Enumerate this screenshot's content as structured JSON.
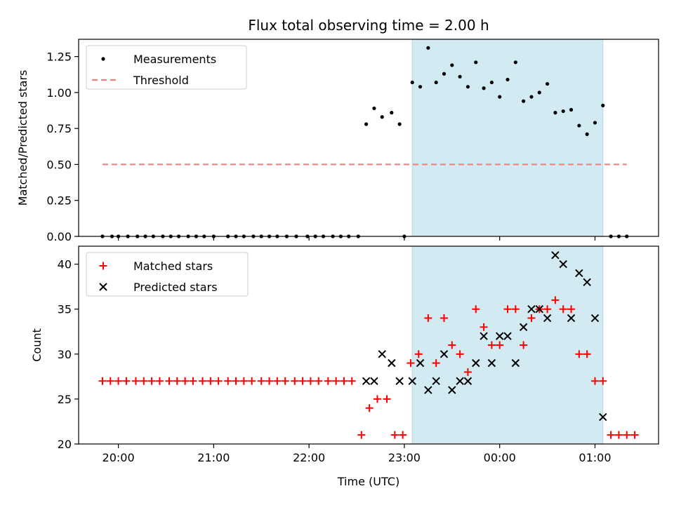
{
  "chart_data": {
    "type": "scatter",
    "title": "Flux total observing time = 2.00 h",
    "xlabel": "Time (UTC)",
    "x_ticks": [
      "20:00",
      "21:00",
      "22:00",
      "23:00",
      "00:00",
      "01:00"
    ],
    "x_range_minutes": [
      -25,
      340
    ],
    "shaded_interval": [
      "23:05",
      "01:05"
    ],
    "shade_color": "#add8e6",
    "panels": [
      {
        "ylabel": "Matched/Predicted stars",
        "ylim": [
          0,
          1.37
        ],
        "y_ticks": [
          "0.00",
          "0.25",
          "0.50",
          "0.75",
          "1.00",
          "1.25"
        ],
        "legend": {
          "placement": "upper left",
          "entries": [
            "Measurements",
            "Threshold"
          ]
        },
        "series": [
          {
            "name": "Measurements",
            "marker": "dot",
            "color": "#000000",
            "x": [
              "19:50",
              "19:56",
              "20:00",
              "20:06",
              "20:12",
              "20:17",
              "20:22",
              "20:28",
              "20:33",
              "20:38",
              "20:44",
              "20:49",
              "20:54",
              "21:00",
              "21:09",
              "21:14",
              "21:19",
              "21:25",
              "21:30",
              "21:35",
              "21:40",
              "21:46",
              "21:52",
              "21:59",
              "22:04",
              "22:09",
              "22:15",
              "22:20",
              "22:25",
              "22:31",
              "22:36",
              "22:41",
              "22:46",
              "22:52",
              "22:57",
              "23:00",
              "23:05",
              "23:10",
              "23:15",
              "23:20",
              "23:25",
              "23:30",
              "23:35",
              "23:40",
              "23:45",
              "23:50",
              "23:55",
              "00:00",
              "00:05",
              "00:10",
              "00:15",
              "00:20",
              "00:25",
              "00:30",
              "00:35",
              "00:40",
              "00:45",
              "00:50",
              "00:55",
              "01:00",
              "01:05",
              "01:10",
              "01:15",
              "01:20"
            ],
            "y": [
              0,
              0,
              0,
              0,
              0,
              0,
              0,
              0,
              0,
              0,
              0,
              0,
              0,
              0,
              0,
              0,
              0,
              0,
              0,
              0,
              0,
              0,
              0,
              0,
              0,
              0,
              0,
              0,
              0,
              0,
              0.78,
              0.89,
              0.83,
              0.86,
              0.78,
              0,
              1.07,
              1.04,
              1.31,
              1.07,
              1.13,
              1.19,
              1.11,
              1.04,
              1.21,
              1.03,
              1.07,
              0.97,
              1.09,
              1.21,
              0.94,
              0.97,
              1.0,
              1.06,
              0.86,
              0.87,
              0.88,
              0.77,
              0.71,
              0.79,
              0.91,
              0,
              0,
              0
            ]
          },
          {
            "name": "Threshold",
            "marker": "dashed-line",
            "color": "#f08080",
            "x": [
              "19:50",
              "01:20"
            ],
            "y": [
              0.5,
              0.5
            ]
          }
        ]
      },
      {
        "ylabel": "Count",
        "ylim": [
          20,
          42
        ],
        "y_ticks": [
          "20",
          "25",
          "30",
          "35",
          "40"
        ],
        "legend": {
          "placement": "upper left",
          "entries": [
            "Matched stars",
            "Predicted stars"
          ]
        },
        "series": [
          {
            "name": "Matched stars",
            "marker": "plus",
            "color": "#ff0000",
            "x": [
              "19:50",
              "19:55",
              "20:00",
              "20:05",
              "20:11",
              "20:16",
              "20:21",
              "20:26",
              "20:32",
              "20:37",
              "20:42",
              "20:47",
              "20:53",
              "20:58",
              "21:03",
              "21:09",
              "21:14",
              "21:19",
              "21:24",
              "21:30",
              "21:35",
              "21:40",
              "21:45",
              "21:51",
              "21:56",
              "22:01",
              "22:06",
              "22:12",
              "22:17",
              "22:22",
              "22:27",
              "22:33",
              "22:38",
              "22:43",
              "22:49",
              "22:54",
              "22:59",
              "23:04",
              "23:09",
              "23:15",
              "23:20",
              "23:25",
              "23:30",
              "23:35",
              "23:40",
              "23:45",
              "23:50",
              "23:55",
              "00:00",
              "00:05",
              "00:10",
              "00:15",
              "00:20",
              "00:25",
              "00:30",
              "00:35",
              "00:40",
              "00:45",
              "00:50",
              "00:55",
              "01:00",
              "01:05",
              "01:10",
              "01:15",
              "01:20",
              "01:25"
            ],
            "y": [
              27,
              27,
              27,
              27,
              27,
              27,
              27,
              27,
              27,
              27,
              27,
              27,
              27,
              27,
              27,
              27,
              27,
              27,
              27,
              27,
              27,
              27,
              27,
              27,
              27,
              27,
              27,
              27,
              27,
              27,
              27,
              21,
              24,
              25,
              25,
              21,
              21,
              29,
              30,
              34,
              29,
              34,
              31,
              30,
              28,
              35,
              33,
              31,
              31,
              35,
              35,
              31,
              34,
              35,
              35,
              36,
              35,
              35,
              30,
              30,
              27,
              27,
              21,
              21,
              21,
              21
            ]
          },
          {
            "name": "Predicted stars",
            "marker": "x",
            "color": "#000000",
            "x": [
              "22:36",
              "22:41",
              "22:46",
              "22:52",
              "22:57",
              "23:05",
              "23:10",
              "23:15",
              "23:20",
              "23:25",
              "23:30",
              "23:35",
              "23:40",
              "23:45",
              "23:50",
              "23:55",
              "00:00",
              "00:05",
              "00:10",
              "00:15",
              "00:20",
              "00:25",
              "00:30",
              "00:35",
              "00:40",
              "00:45",
              "00:50",
              "00:55",
              "01:00",
              "01:05"
            ],
            "y": [
              27,
              27,
              30,
              29,
              27,
              27,
              29,
              26,
              27,
              30,
              26,
              27,
              27,
              29,
              32,
              29,
              32,
              32,
              29,
              33,
              35,
              35,
              34,
              41,
              40,
              34,
              39,
              38,
              34,
              23
            ]
          }
        ]
      }
    ]
  }
}
